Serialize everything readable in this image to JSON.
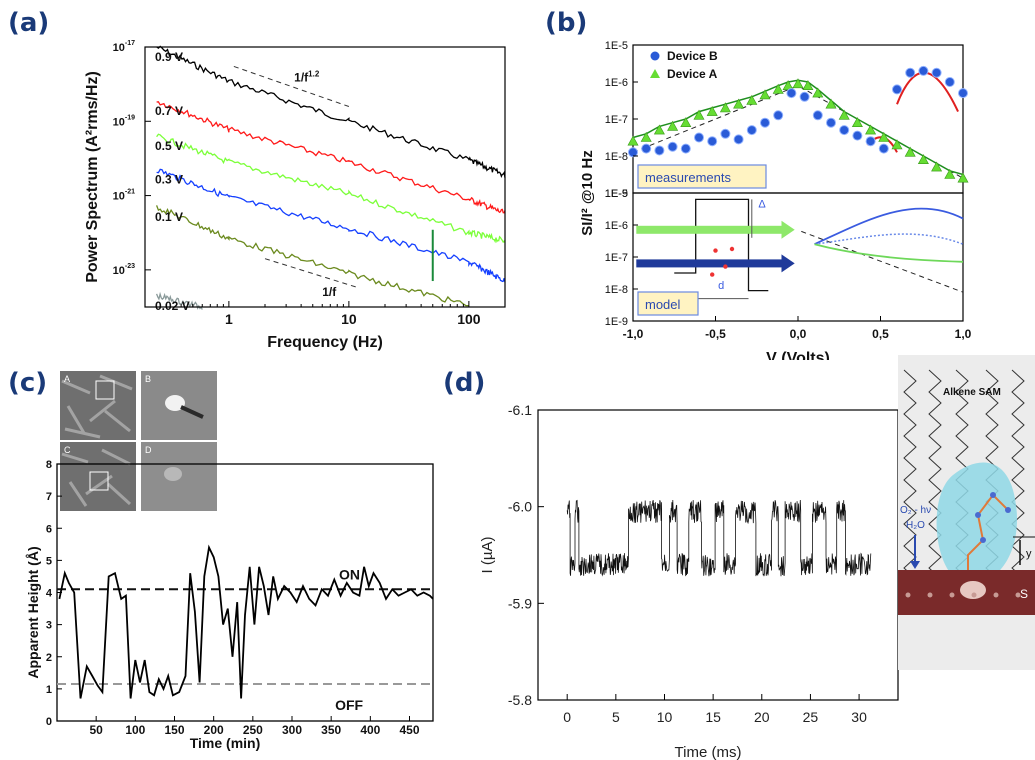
{
  "panels": {
    "a": "(a)",
    "b": "(b)",
    "c": "(c)",
    "d": "(d)"
  },
  "colors": {
    "panel_letter": "#1a3a78"
  },
  "chart_data": [
    {
      "id": "a",
      "type": "line",
      "xlabel": "Frequency (Hz)",
      "ylabel": "Power Spectrum (A²rms/Hz)",
      "x_scale": "log",
      "y_scale": "log",
      "xlim": [
        0.2,
        200
      ],
      "ylim": [
        1e-24,
        1e-17
      ],
      "x_ticks": [
        {
          "v": 1,
          "t": "1"
        },
        {
          "v": 10,
          "t": "10"
        },
        {
          "v": 100,
          "t": "100"
        }
      ],
      "y_ticks": [
        {
          "v": -17,
          "t": "10"
        },
        {
          "v": -19,
          "t": "10"
        },
        {
          "v": -21,
          "t": "10"
        },
        {
          "v": -23,
          "t": "10"
        }
      ],
      "y_tick_exps": [
        "-17",
        "-19",
        "-21",
        "-23"
      ],
      "series": [
        {
          "name": "0.9 V",
          "color": "#000000",
          "points": [
            [
              0.25,
              1e-17
            ],
            [
              1,
              1.2e-18
            ],
            [
              10,
              1e-19
            ],
            [
              100,
              9e-21
            ],
            [
              200,
              3.5e-21
            ]
          ]
        },
        {
          "name": "0.7 V",
          "color": "#ff1a1a",
          "points": [
            [
              0.25,
              3.5e-19
            ],
            [
              1,
              6e-20
            ],
            [
              10,
              8e-21
            ],
            [
              100,
              8e-22
            ],
            [
              200,
              3.3e-22
            ]
          ]
        },
        {
          "name": "0.5 V",
          "color": "#7cff3a",
          "points": [
            [
              0.25,
              4e-20
            ],
            [
              1,
              8e-21
            ],
            [
              10,
              1.1e-21
            ],
            [
              100,
              1e-22
            ],
            [
              200,
              6e-23
            ]
          ]
        },
        {
          "name": "0.3 V",
          "color": "#1540ff",
          "points": [
            [
              0.25,
              5e-21
            ],
            [
              1,
              9e-22
            ],
            [
              10,
              1.3e-22
            ],
            [
              100,
              1.6e-23
            ],
            [
              200,
              5e-24
            ]
          ]
        },
        {
          "name": "0.1 V",
          "color": "#6b8a1e",
          "points": [
            [
              0.25,
              5e-22
            ],
            [
              1,
              7e-23
            ],
            [
              10,
              8e-24
            ],
            [
              100,
              1.1e-24
            ]
          ]
        },
        {
          "name": "0.02 V",
          "color": "#8a9a9a",
          "points": [
            [
              0.25,
              2e-24
            ],
            [
              0.6,
              1e-24
            ]
          ]
        }
      ],
      "annotations": [
        {
          "text": "1/f",
          "sup": "1.2"
        },
        {
          "text": "1/f",
          "sup": ""
        }
      ]
    },
    {
      "id": "b",
      "type": "scatter",
      "ylabel": "SI/I² @10 Hz",
      "xlabel": "V (Volts)",
      "x_ticks": [
        "-1,0",
        "-0,5",
        "0,0",
        "0,5",
        "1,0"
      ],
      "y_ticks": [
        "1E-5",
        "1E-6",
        "1E-7",
        "1E-8",
        "1E-9"
      ],
      "x_range": [
        -1,
        1
      ],
      "y_log_range": [
        -9,
        -5
      ],
      "legend": [
        {
          "name": "Device B",
          "marker": "circle",
          "color": "#2a5bd7"
        },
        {
          "name": "Device A",
          "marker": "triangle",
          "color": "#66dd33"
        }
      ],
      "top_box_label": "measurements",
      "bottom_box_label": "model",
      "model_labels": {
        "delta": "Δ",
        "d": "d"
      },
      "device_b": [
        [
          -1,
          -7.9
        ],
        [
          -0.92,
          -7.8
        ],
        [
          -0.84,
          -7.85
        ],
        [
          -0.76,
          -7.75
        ],
        [
          -0.68,
          -7.8
        ],
        [
          -0.6,
          -7.5
        ],
        [
          -0.52,
          -7.6
        ],
        [
          -0.44,
          -7.4
        ],
        [
          -0.36,
          -7.55
        ],
        [
          -0.28,
          -7.3
        ],
        [
          -0.2,
          -7.1
        ],
        [
          -0.12,
          -6.9
        ],
        [
          -0.04,
          -6.3
        ],
        [
          0.04,
          -6.4
        ],
        [
          0.12,
          -6.9
        ],
        [
          0.2,
          -7.1
        ],
        [
          0.28,
          -7.3
        ],
        [
          0.36,
          -7.45
        ],
        [
          0.44,
          -7.6
        ],
        [
          0.52,
          -7.8
        ],
        [
          0.6,
          -6.2
        ],
        [
          0.68,
          -5.75
        ],
        [
          0.76,
          -5.7
        ],
        [
          0.84,
          -5.75
        ],
        [
          0.92,
          -6.0
        ],
        [
          1.0,
          -6.3
        ]
      ],
      "device_a": [
        [
          -1,
          -7.6
        ],
        [
          -0.92,
          -7.5
        ],
        [
          -0.84,
          -7.3
        ],
        [
          -0.76,
          -7.2
        ],
        [
          -0.68,
          -7.1
        ],
        [
          -0.6,
          -6.9
        ],
        [
          -0.52,
          -6.8
        ],
        [
          -0.44,
          -6.7
        ],
        [
          -0.36,
          -6.6
        ],
        [
          -0.28,
          -6.5
        ],
        [
          -0.2,
          -6.35
        ],
        [
          -0.12,
          -6.2
        ],
        [
          -0.06,
          -6.1
        ],
        [
          0,
          -6.05
        ],
        [
          0.06,
          -6.1
        ],
        [
          0.12,
          -6.3
        ],
        [
          0.2,
          -6.6
        ],
        [
          0.28,
          -6.9
        ],
        [
          0.36,
          -7.1
        ],
        [
          0.44,
          -7.3
        ],
        [
          0.52,
          -7.5
        ],
        [
          0.6,
          -7.7
        ],
        [
          0.68,
          -7.9
        ],
        [
          0.76,
          -8.1
        ],
        [
          0.84,
          -8.3
        ],
        [
          0.92,
          -8.5
        ],
        [
          1.0,
          -8.6
        ]
      ]
    },
    {
      "id": "c",
      "type": "line",
      "xlabel": "Time (min)",
      "ylabel": "Apparent Height (Å)",
      "xlim": [
        0,
        480
      ],
      "ylim": [
        0,
        8
      ],
      "x_ticks": [
        "50",
        "100",
        "150",
        "200",
        "250",
        "300",
        "350",
        "400",
        "450"
      ],
      "y_ticks": [
        "0",
        "1",
        "2",
        "3",
        "4",
        "5",
        "6",
        "7",
        "8"
      ],
      "on_label": "ON",
      "off_label": "OFF",
      "on_level": 4.1,
      "off_level": 1.15,
      "thumb_labels": [
        "A",
        "B",
        "C",
        "D"
      ],
      "values": [
        [
          3,
          3.8
        ],
        [
          10,
          4.6
        ],
        [
          15,
          4.3
        ],
        [
          22,
          4.0
        ],
        [
          30,
          0.7
        ],
        [
          38,
          1.7
        ],
        [
          45,
          1.4
        ],
        [
          52,
          1.1
        ],
        [
          58,
          0.9
        ],
        [
          66,
          4.5
        ],
        [
          74,
          4.6
        ],
        [
          82,
          3.8
        ],
        [
          88,
          3.9
        ],
        [
          94,
          0.7
        ],
        [
          100,
          1.9
        ],
        [
          106,
          1.2
        ],
        [
          112,
          1.9
        ],
        [
          118,
          0.9
        ],
        [
          124,
          0.8
        ],
        [
          130,
          1.3
        ],
        [
          136,
          1.0
        ],
        [
          142,
          1.4
        ],
        [
          148,
          0.8
        ],
        [
          156,
          0.9
        ],
        [
          164,
          1.4
        ],
        [
          170,
          4.6
        ],
        [
          176,
          3.4
        ],
        [
          182,
          1.2
        ],
        [
          188,
          4.5
        ],
        [
          194,
          5.4
        ],
        [
          200,
          5.1
        ],
        [
          206,
          4.5
        ],
        [
          212,
          3.0
        ],
        [
          218,
          3.5
        ],
        [
          224,
          2.0
        ],
        [
          230,
          3.7
        ],
        [
          235,
          0.7
        ],
        [
          240,
          3.3
        ],
        [
          246,
          4.8
        ],
        [
          252,
          3.0
        ],
        [
          258,
          4.8
        ],
        [
          264,
          4.2
        ],
        [
          270,
          3.3
        ],
        [
          276,
          4.5
        ],
        [
          282,
          3.8
        ],
        [
          290,
          4.2
        ],
        [
          298,
          4.0
        ],
        [
          306,
          3.7
        ],
        [
          314,
          4.2
        ],
        [
          322,
          3.8
        ],
        [
          330,
          3.6
        ],
        [
          338,
          4.1
        ],
        [
          346,
          3.9
        ],
        [
          354,
          4.4
        ],
        [
          362,
          3.9
        ],
        [
          370,
          4.3
        ],
        [
          378,
          4.0
        ],
        [
          386,
          3.9
        ],
        [
          392,
          4.8
        ],
        [
          398,
          4.2
        ],
        [
          404,
          4.6
        ],
        [
          412,
          4.3
        ],
        [
          420,
          3.8
        ],
        [
          428,
          4.1
        ],
        [
          436,
          3.9
        ],
        [
          444,
          4.0
        ],
        [
          452,
          4.1
        ],
        [
          460,
          3.9
        ],
        [
          468,
          4.0
        ],
        [
          476,
          3.9
        ],
        [
          480,
          3.8
        ]
      ]
    },
    {
      "id": "d",
      "type": "line",
      "xlabel": "Time (ms)",
      "ylabel": "I (µA)",
      "xlim": [
        -3,
        34
      ],
      "ylim": [
        -5.8,
        -6.1
      ],
      "x_ticks": [
        "0",
        "5",
        "10",
        "15",
        "20",
        "25",
        "30"
      ],
      "y_ticks": [
        "-6.1",
        "-6.0",
        "-5.9",
        "-5.8"
      ],
      "high_level": -5.995,
      "low_level": -5.94,
      "segments": [
        [
          0,
          0.3,
          "h"
        ],
        [
          0.3,
          0.8,
          "l"
        ],
        [
          0.8,
          1.2,
          "h"
        ],
        [
          1.2,
          6.3,
          "l"
        ],
        [
          6.3,
          9.7,
          "h"
        ],
        [
          9.7,
          10.5,
          "l"
        ],
        [
          10.5,
          11.3,
          "h"
        ],
        [
          11.3,
          12.5,
          "l"
        ],
        [
          12.5,
          13.8,
          "h"
        ],
        [
          13.8,
          15.2,
          "l"
        ],
        [
          15.2,
          16.1,
          "h"
        ],
        [
          16.1,
          17.3,
          "l"
        ],
        [
          17.3,
          19.4,
          "h"
        ],
        [
          19.4,
          21.0,
          "l"
        ],
        [
          21.0,
          21.7,
          "h"
        ],
        [
          21.7,
          22.4,
          "l"
        ],
        [
          22.4,
          24.0,
          "h"
        ],
        [
          24.0,
          25.2,
          "l"
        ],
        [
          25.2,
          26.6,
          "h"
        ],
        [
          26.6,
          27.7,
          "l"
        ],
        [
          27.7,
          28.6,
          "h"
        ],
        [
          28.6,
          31.2,
          "l"
        ]
      ],
      "schematic": {
        "title": "Alkene SAM",
        "o2_label": "O₂ - hν",
        "h2o_label": "H₂O",
        "y_label": "y",
        "s_label": "S"
      }
    }
  ]
}
